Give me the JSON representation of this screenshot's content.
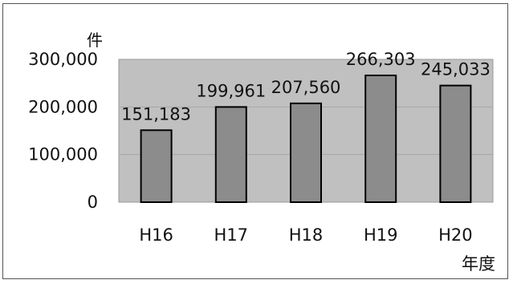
{
  "chart_data": {
    "type": "bar",
    "categories": [
      "H16",
      "H17",
      "H18",
      "H19",
      "H20"
    ],
    "values": [
      151183,
      199961,
      207560,
      266303,
      245033
    ],
    "data_labels": [
      "151,183",
      "199,961",
      "207,560",
      "266,303",
      "245,033"
    ],
    "title": "",
    "xlabel": "年度",
    "ylabel": "件",
    "ylim": [
      0,
      300000
    ],
    "yticks": [
      0,
      100000,
      200000,
      300000
    ],
    "ytick_labels": [
      "0",
      "100,000",
      "200,000",
      "300,000"
    ],
    "grid": true,
    "legend": "none",
    "colors": {
      "plot_background": "#c0c0c0",
      "bar_fill": "#8c8c8c",
      "bar_stroke": "#000000",
      "gridline": "#a6a6a6"
    }
  }
}
